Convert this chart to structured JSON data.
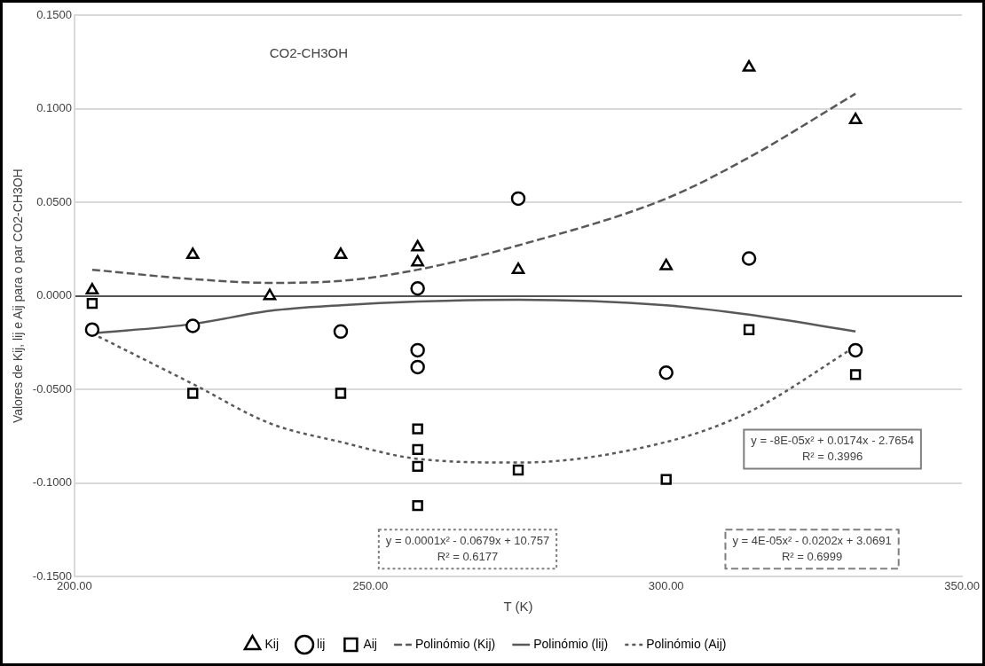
{
  "chart_data": {
    "type": "scatter",
    "xlabel": "T (K)",
    "ylabel": "Valores de Kij, lij e Aij para o par CO2-CH3OH",
    "xlim": [
      200,
      350
    ],
    "xticks": [
      {
        "value": 200,
        "label": "200.00"
      },
      {
        "value": 250,
        "label": "250.00"
      },
      {
        "value": 300,
        "label": "300.00"
      },
      {
        "value": 350,
        "label": "350.00"
      }
    ],
    "ylim": [
      -0.15,
      0.15
    ],
    "yticks": [
      {
        "value": -0.15,
        "label": "-0.1500"
      },
      {
        "value": -0.1,
        "label": "-0.1000"
      },
      {
        "value": -0.05,
        "label": "-0.0500"
      },
      {
        "value": 0,
        "label": "0.0000"
      },
      {
        "value": 0.05,
        "label": "0.0500"
      },
      {
        "value": 0.1,
        "label": "0.1000"
      },
      {
        "value": 0.15,
        "label": "0.1500"
      }
    ],
    "grid": "y",
    "legend": "bottom",
    "annotations": [
      "CO2-CH3OH",
      "y = -8E-05x² + 0.0174x - 2.7654\nR² = 0.3996",
      "y = 0.0001x² - 0.0679x + 10.757\nR² = 0.6177",
      "y = 4E-05x² - 0.0202x + 3.0691\nR² = 0.6999"
    ],
    "series": [
      {
        "name": "Kij",
        "type": "scatter",
        "marker": "triangle",
        "color": "#000000",
        "x": [
          203,
          220,
          233,
          245,
          258,
          258,
          275,
          300,
          314,
          332
        ],
        "values": [
          0.003,
          0.022,
          0.0,
          0.022,
          0.026,
          0.018,
          0.014,
          0.016,
          0.122,
          0.094
        ]
      },
      {
        "name": "lij",
        "type": "scatter",
        "marker": "circle",
        "color": "#000000",
        "x": [
          203,
          220,
          245,
          258,
          258,
          258,
          275,
          300,
          314,
          332
        ],
        "values": [
          -0.018,
          -0.016,
          -0.019,
          0.004,
          -0.029,
          -0.038,
          0.052,
          -0.041,
          0.02,
          -0.029
        ]
      },
      {
        "name": "Aij",
        "type": "scatter",
        "marker": "square",
        "color": "#000000",
        "x": [
          203,
          220,
          245,
          258,
          258,
          258,
          258,
          275,
          300,
          314,
          332
        ],
        "values": [
          -0.004,
          -0.052,
          -0.052,
          -0.071,
          -0.082,
          -0.091,
          -0.112,
          -0.093,
          -0.098,
          -0.018,
          -0.042
        ]
      },
      {
        "name": "Polinómio (Kij)",
        "type": "line",
        "line_style": "dashed",
        "marker": "none",
        "color": "#595959",
        "x": [
          203,
          220,
          233,
          245,
          258,
          275,
          300,
          314,
          332
        ],
        "values": [
          0.014,
          0.009,
          0.007,
          0.008,
          0.014,
          0.027,
          0.052,
          0.074,
          0.108
        ]
      },
      {
        "name": "Polinómio (lij)",
        "type": "line",
        "line_style": "solid",
        "marker": "none",
        "color": "#595959",
        "x": [
          203,
          220,
          233,
          245,
          258,
          275,
          300,
          314,
          332
        ],
        "values": [
          -0.02,
          -0.015,
          -0.008,
          -0.005,
          -0.003,
          -0.002,
          -0.005,
          -0.01,
          -0.019
        ]
      },
      {
        "name": "Polinómio (Aij)",
        "type": "line",
        "line_style": "dotted",
        "marker": "none",
        "color": "#595959",
        "x": [
          203,
          220,
          233,
          245,
          258,
          275,
          300,
          314,
          332
        ],
        "values": [
          -0.02,
          -0.047,
          -0.068,
          -0.078,
          -0.087,
          -0.089,
          -0.078,
          -0.062,
          -0.027
        ]
      }
    ]
  }
}
